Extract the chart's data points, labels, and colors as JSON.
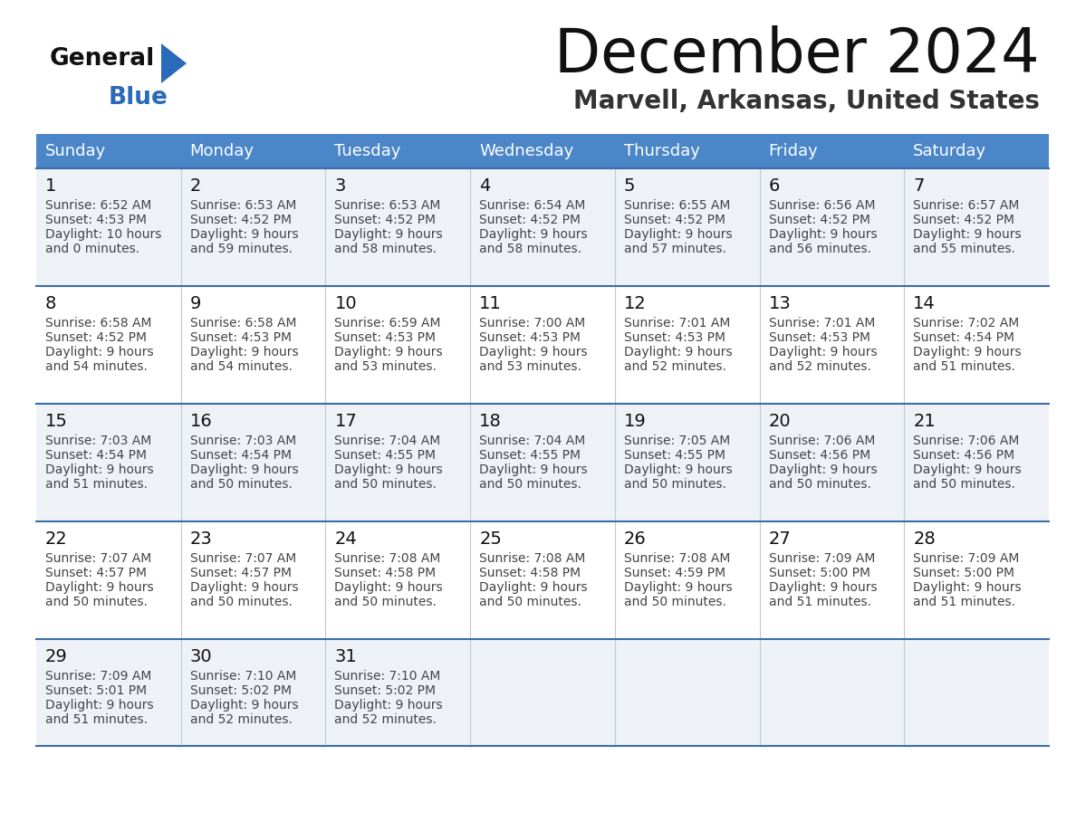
{
  "title": "December 2024",
  "subtitle": "Marvell, Arkansas, United States",
  "days_of_week": [
    "Sunday",
    "Monday",
    "Tuesday",
    "Wednesday",
    "Thursday",
    "Friday",
    "Saturday"
  ],
  "header_bg": "#4a86c8",
  "header_text": "#ffffff",
  "row_bg_odd": "#eef2f7",
  "row_bg_even": "#ffffff",
  "separator_color": "#3a6ea8",
  "cell_text_color": "#444444",
  "day_num_color": "#111111",
  "logo_text_color": "#111111",
  "logo_blue_color": "#2a6aba",
  "title_color": "#111111",
  "subtitle_color": "#333333",
  "calendar_data": [
    [
      {
        "day": 1,
        "sunrise": "6:52 AM",
        "sunset": "4:53 PM",
        "daylight_h": "10 hours",
        "daylight_m": "and 0 minutes."
      },
      {
        "day": 2,
        "sunrise": "6:53 AM",
        "sunset": "4:52 PM",
        "daylight_h": "9 hours",
        "daylight_m": "and 59 minutes."
      },
      {
        "day": 3,
        "sunrise": "6:53 AM",
        "sunset": "4:52 PM",
        "daylight_h": "9 hours",
        "daylight_m": "and 58 minutes."
      },
      {
        "day": 4,
        "sunrise": "6:54 AM",
        "sunset": "4:52 PM",
        "daylight_h": "9 hours",
        "daylight_m": "and 58 minutes."
      },
      {
        "day": 5,
        "sunrise": "6:55 AM",
        "sunset": "4:52 PM",
        "daylight_h": "9 hours",
        "daylight_m": "and 57 minutes."
      },
      {
        "day": 6,
        "sunrise": "6:56 AM",
        "sunset": "4:52 PM",
        "daylight_h": "9 hours",
        "daylight_m": "and 56 minutes."
      },
      {
        "day": 7,
        "sunrise": "6:57 AM",
        "sunset": "4:52 PM",
        "daylight_h": "9 hours",
        "daylight_m": "and 55 minutes."
      }
    ],
    [
      {
        "day": 8,
        "sunrise": "6:58 AM",
        "sunset": "4:52 PM",
        "daylight_h": "9 hours",
        "daylight_m": "and 54 minutes."
      },
      {
        "day": 9,
        "sunrise": "6:58 AM",
        "sunset": "4:53 PM",
        "daylight_h": "9 hours",
        "daylight_m": "and 54 minutes."
      },
      {
        "day": 10,
        "sunrise": "6:59 AM",
        "sunset": "4:53 PM",
        "daylight_h": "9 hours",
        "daylight_m": "and 53 minutes."
      },
      {
        "day": 11,
        "sunrise": "7:00 AM",
        "sunset": "4:53 PM",
        "daylight_h": "9 hours",
        "daylight_m": "and 53 minutes."
      },
      {
        "day": 12,
        "sunrise": "7:01 AM",
        "sunset": "4:53 PM",
        "daylight_h": "9 hours",
        "daylight_m": "and 52 minutes."
      },
      {
        "day": 13,
        "sunrise": "7:01 AM",
        "sunset": "4:53 PM",
        "daylight_h": "9 hours",
        "daylight_m": "and 52 minutes."
      },
      {
        "day": 14,
        "sunrise": "7:02 AM",
        "sunset": "4:54 PM",
        "daylight_h": "9 hours",
        "daylight_m": "and 51 minutes."
      }
    ],
    [
      {
        "day": 15,
        "sunrise": "7:03 AM",
        "sunset": "4:54 PM",
        "daylight_h": "9 hours",
        "daylight_m": "and 51 minutes."
      },
      {
        "day": 16,
        "sunrise": "7:03 AM",
        "sunset": "4:54 PM",
        "daylight_h": "9 hours",
        "daylight_m": "and 50 minutes."
      },
      {
        "day": 17,
        "sunrise": "7:04 AM",
        "sunset": "4:55 PM",
        "daylight_h": "9 hours",
        "daylight_m": "and 50 minutes."
      },
      {
        "day": 18,
        "sunrise": "7:04 AM",
        "sunset": "4:55 PM",
        "daylight_h": "9 hours",
        "daylight_m": "and 50 minutes."
      },
      {
        "day": 19,
        "sunrise": "7:05 AM",
        "sunset": "4:55 PM",
        "daylight_h": "9 hours",
        "daylight_m": "and 50 minutes."
      },
      {
        "day": 20,
        "sunrise": "7:06 AM",
        "sunset": "4:56 PM",
        "daylight_h": "9 hours",
        "daylight_m": "and 50 minutes."
      },
      {
        "day": 21,
        "sunrise": "7:06 AM",
        "sunset": "4:56 PM",
        "daylight_h": "9 hours",
        "daylight_m": "and 50 minutes."
      }
    ],
    [
      {
        "day": 22,
        "sunrise": "7:07 AM",
        "sunset": "4:57 PM",
        "daylight_h": "9 hours",
        "daylight_m": "and 50 minutes."
      },
      {
        "day": 23,
        "sunrise": "7:07 AM",
        "sunset": "4:57 PM",
        "daylight_h": "9 hours",
        "daylight_m": "and 50 minutes."
      },
      {
        "day": 24,
        "sunrise": "7:08 AM",
        "sunset": "4:58 PM",
        "daylight_h": "9 hours",
        "daylight_m": "and 50 minutes."
      },
      {
        "day": 25,
        "sunrise": "7:08 AM",
        "sunset": "4:58 PM",
        "daylight_h": "9 hours",
        "daylight_m": "and 50 minutes."
      },
      {
        "day": 26,
        "sunrise": "7:08 AM",
        "sunset": "4:59 PM",
        "daylight_h": "9 hours",
        "daylight_m": "and 50 minutes."
      },
      {
        "day": 27,
        "sunrise": "7:09 AM",
        "sunset": "5:00 PM",
        "daylight_h": "9 hours",
        "daylight_m": "and 51 minutes."
      },
      {
        "day": 28,
        "sunrise": "7:09 AM",
        "sunset": "5:00 PM",
        "daylight_h": "9 hours",
        "daylight_m": "and 51 minutes."
      }
    ],
    [
      {
        "day": 29,
        "sunrise": "7:09 AM",
        "sunset": "5:01 PM",
        "daylight_h": "9 hours",
        "daylight_m": "and 51 minutes."
      },
      {
        "day": 30,
        "sunrise": "7:10 AM",
        "sunset": "5:02 PM",
        "daylight_h": "9 hours",
        "daylight_m": "and 52 minutes."
      },
      {
        "day": 31,
        "sunrise": "7:10 AM",
        "sunset": "5:02 PM",
        "daylight_h": "9 hours",
        "daylight_m": "and 52 minutes."
      },
      null,
      null,
      null,
      null
    ]
  ]
}
